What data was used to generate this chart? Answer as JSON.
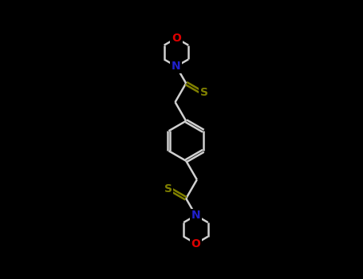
{
  "background_color": "#000000",
  "bond_color": "#d0d0d0",
  "N_color": "#2020cc",
  "O_color": "#dd0000",
  "S_color": "#808000",
  "line_width": 1.8,
  "figsize": [
    4.55,
    3.5
  ],
  "dpi": 100,
  "xlim": [
    -3.0,
    3.0
  ],
  "ylim": [
    -4.2,
    4.2
  ]
}
